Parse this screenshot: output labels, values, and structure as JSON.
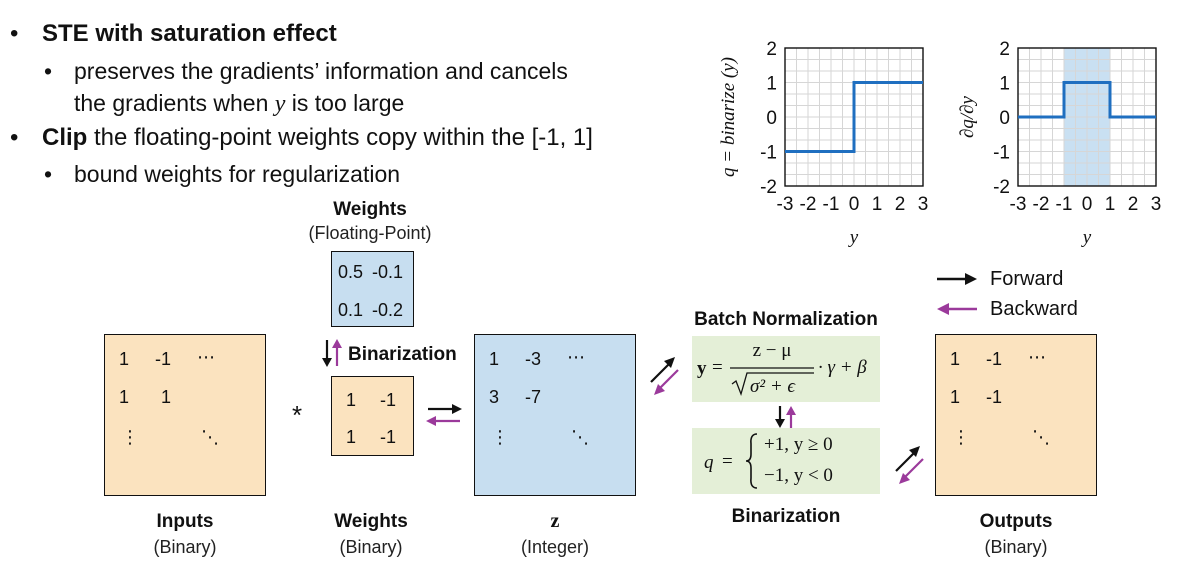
{
  "bullets": {
    "b1_bold": "STE with saturation effect",
    "b1_sub_line1": "preserves the gradients’ information and cancels",
    "b1_sub_line2_pre": "the gradients when ",
    "b1_sub_line2_var": "y",
    "b1_sub_line2_post": " is too large",
    "b2_bold": "Clip",
    "b2_rest": " the floating-point weights copy within the [-1, 1]",
    "b2_sub": "bound weights for regularization"
  },
  "plots": {
    "left": {
      "ylabel": "q = binarize (y)",
      "xlabel": "y",
      "yticks": [
        "2",
        "1",
        "0",
        "-1",
        "-2"
      ],
      "xticks": [
        "-3",
        "-2",
        "-1",
        "0",
        "1",
        "2",
        "3"
      ],
      "line_color": "#1f6fc0"
    },
    "right": {
      "ylabel": "∂q/∂y",
      "xlabel": "y",
      "yticks": [
        "2",
        "1",
        "0",
        "-1",
        "-2"
      ],
      "xticks": [
        "-3",
        "-2",
        "-1",
        "0",
        "1",
        "2",
        "3"
      ],
      "line_color": "#1f6fc0",
      "shade_color": "#c9e0f2"
    }
  },
  "weights_fp": {
    "title": "Weights",
    "subtitle": "(Floating-Point)",
    "cells": [
      "0.5",
      "-0.1",
      "0.1",
      "-0.2"
    ]
  },
  "binarization_label": "Binarization",
  "inputs": {
    "title": "Inputs",
    "subtitle": "(Binary)",
    "cells": [
      "1",
      "-1",
      "⋯",
      "1",
      "1",
      "⋮",
      "⋱"
    ]
  },
  "operator": "*",
  "weights_bin": {
    "title": "Weights",
    "subtitle": "(Binary)",
    "cells": [
      "1",
      "-1",
      "1",
      "-1"
    ]
  },
  "z": {
    "title": "z",
    "subtitle": "(Integer)",
    "cells": [
      "1",
      "-3",
      "⋯",
      "3",
      "-7",
      "⋮",
      "⋱"
    ]
  },
  "batchnorm": {
    "title": "Batch Normalization",
    "lhs": "y",
    "eq": "=",
    "num": "z − μ",
    "den": "σ² + ϵ",
    "tail": "· γ + β"
  },
  "binarize_eq": {
    "lhs": "q",
    "eq": "=",
    "case1": "+1,   y ≥ 0",
    "case2": "−1,   y < 0",
    "title": "Binarization"
  },
  "outputs": {
    "title": "Outputs",
    "subtitle": "(Binary)",
    "cells": [
      "1",
      "-1",
      "⋯",
      "1",
      "-1",
      "⋮",
      "⋱"
    ]
  },
  "legend": {
    "forward": "Forward",
    "backward": "Backward",
    "forward_color": "#111111",
    "backward_color": "#9b3a9b"
  }
}
